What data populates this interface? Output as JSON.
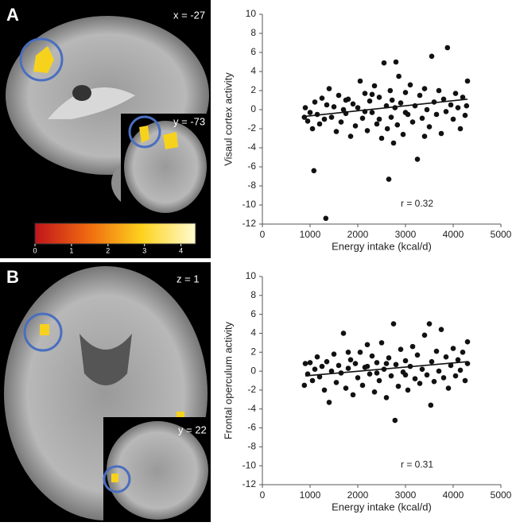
{
  "panels": [
    {
      "label": "A",
      "coordinates": [
        "x = -27",
        "y = -73"
      ]
    },
    {
      "label": "B",
      "coordinates": [
        "z = 1",
        "y = 22"
      ]
    }
  ],
  "colorbar": {
    "lim": [
      0,
      4.4
    ],
    "ticks": [
      0,
      1,
      2,
      3,
      4
    ],
    "colors": [
      "#c0141c",
      "#f06a10",
      "#fdd21e",
      "#fffbd0"
    ]
  },
  "chart_data": [
    {
      "type": "scatter",
      "ylabel": "Visaul cortex activity",
      "xlabel": "Energy intake (kcal/d)",
      "annotation": "r = 0.32",
      "color": "#111111",
      "xlim": [
        0,
        5000
      ],
      "ylim": [
        -12,
        10
      ],
      "xticks": [
        0,
        1000,
        2000,
        3000,
        4000,
        5000
      ],
      "yticks": [
        -12,
        -10,
        -8,
        -6,
        -4,
        -2,
        0,
        2,
        4,
        6,
        8,
        10
      ],
      "x": [
        880,
        900,
        950,
        1000,
        1050,
        1080,
        1100,
        1150,
        1200,
        1250,
        1300,
        1330,
        1350,
        1400,
        1450,
        1500,
        1550,
        1600,
        1650,
        1700,
        1750,
        1800,
        1850,
        1900,
        1950,
        2000,
        2050,
        2100,
        2150,
        2200,
        2250,
        2300,
        2350,
        2400,
        2450,
        2500,
        2550,
        2600,
        2620,
        2650,
        2680,
        2700,
        2720,
        2750,
        2780,
        2800,
        2830,
        2860,
        2900,
        2950,
        3000,
        3050,
        3100,
        3150,
        3200,
        3250,
        3300,
        3350,
        3400,
        3450,
        3500,
        3550,
        3600,
        3650,
        3700,
        3750,
        3800,
        3850,
        3880,
        3950,
        4000,
        4050,
        4100,
        4150,
        4200,
        4250,
        4300,
        4280,
        2150,
        2450,
        3000,
        2300,
        1750,
        3400
      ],
      "y": [
        -0.8,
        0.2,
        -1.2,
        -0.3,
        -2.0,
        -6.4,
        0.8,
        -0.5,
        -1.5,
        1.2,
        -1.0,
        -11.4,
        0.5,
        2.2,
        -0.8,
        0.3,
        -2.3,
        1.5,
        -1.3,
        0.0,
        -0.4,
        1.1,
        -2.8,
        0.6,
        -1.7,
        0.2,
        3.0,
        -0.9,
        1.7,
        -2.2,
        0.9,
        -0.3,
        2.5,
        -1.5,
        1.3,
        -3.0,
        4.9,
        0.4,
        -2.0,
        -7.3,
        2.0,
        -0.8,
        1.0,
        -3.5,
        0.2,
        5.0,
        -1.6,
        3.5,
        0.7,
        -2.6,
        1.8,
        -0.5,
        2.6,
        -1.3,
        0.4,
        -5.2,
        1.5,
        -0.9,
        2.2,
        0.0,
        -1.8,
        5.6,
        0.8,
        -0.5,
        2.0,
        -2.5,
        1.1,
        -0.2,
        6.5,
        0.5,
        -1.0,
        1.7,
        0.2,
        -2.0,
        1.3,
        -0.6,
        3.0,
        0.4,
        -0.2,
        -1.0,
        -0.3,
        1.6,
        1.0,
        -2.8
      ],
      "trendline": {
        "x": [
          900,
          4300
        ],
        "y": [
          -0.7,
          1.1
        ]
      }
    },
    {
      "type": "scatter",
      "ylabel": "Frontal operculum activity",
      "xlabel": "Energy intake (kcal/d)",
      "annotation": "r = 0.31",
      "color": "#111111",
      "xlim": [
        0,
        5000
      ],
      "ylim": [
        -12,
        10
      ],
      "xticks": [
        0,
        1000,
        2000,
        3000,
        4000,
        5000
      ],
      "yticks": [
        -12,
        -10,
        -8,
        -6,
        -4,
        -2,
        0,
        2,
        4,
        6,
        8,
        10
      ],
      "x": [
        880,
        900,
        950,
        1000,
        1050,
        1100,
        1150,
        1200,
        1250,
        1300,
        1350,
        1400,
        1450,
        1500,
        1550,
        1600,
        1650,
        1700,
        1750,
        1800,
        1850,
        1900,
        1950,
        2000,
        2050,
        2100,
        2150,
        2200,
        2250,
        2300,
        2350,
        2400,
        2450,
        2500,
        2550,
        2600,
        2650,
        2700,
        2750,
        2780,
        2800,
        2850,
        2900,
        2950,
        3000,
        3050,
        3100,
        3150,
        3200,
        3250,
        3300,
        3350,
        3400,
        3450,
        3500,
        3530,
        3550,
        3600,
        3650,
        3700,
        3750,
        3800,
        3850,
        3900,
        3950,
        4000,
        4050,
        4100,
        4150,
        4200,
        4250,
        4300,
        4300,
        2200,
        2600,
        3000,
        1800,
        2400
      ],
      "y": [
        -1.5,
        0.8,
        -0.3,
        0.9,
        -1.0,
        0.2,
        1.5,
        -0.6,
        0.5,
        -2.0,
        1.0,
        -3.3,
        0.0,
        1.8,
        -1.2,
        0.6,
        -0.2,
        4.0,
        -1.8,
        0.3,
        1.2,
        -2.5,
        0.8,
        -0.7,
        2.0,
        -1.5,
        0.4,
        2.8,
        -0.3,
        1.6,
        -2.2,
        0.9,
        -1.0,
        3.0,
        0.2,
        -2.8,
        1.4,
        -0.5,
        5.0,
        -5.2,
        0.7,
        -1.6,
        2.3,
        -0.1,
        1.1,
        -2.0,
        0.5,
        2.6,
        -0.8,
        1.7,
        -1.3,
        0.2,
        3.8,
        -0.4,
        5.0,
        -3.6,
        1.0,
        -1.1,
        2.1,
        0.0,
        4.4,
        -0.7,
        1.5,
        -1.8,
        0.6,
        2.4,
        -0.5,
        1.2,
        0.1,
        2.0,
        -1.0,
        3.1,
        0.8,
        0.5,
        0.8,
        -0.4,
        2.0,
        -0.2
      ],
      "trendline": {
        "x": [
          900,
          4300
        ],
        "y": [
          -0.5,
          1.0
        ]
      }
    }
  ]
}
